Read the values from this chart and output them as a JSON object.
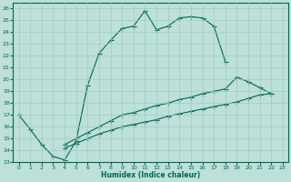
{
  "title": "",
  "xlabel": "Humidex (Indice chaleur)",
  "xlim": [
    -0.5,
    23.5
  ],
  "ylim": [
    13,
    26.5
  ],
  "yticks": [
    13,
    14,
    15,
    16,
    17,
    18,
    19,
    20,
    21,
    22,
    23,
    24,
    25,
    26
  ],
  "xticks": [
    0,
    1,
    2,
    3,
    4,
    5,
    6,
    7,
    8,
    9,
    10,
    11,
    12,
    13,
    14,
    15,
    16,
    17,
    18,
    19,
    20,
    21,
    22,
    23
  ],
  "bg_color": "#bde0d8",
  "grid_color": "#9dccc4",
  "line_color": "#006655",
  "curve1_y": [
    17.0,
    15.8,
    14.5,
    13.5,
    13.2,
    14.8,
    19.5,
    22.2,
    23.3,
    24.3,
    24.5,
    25.8,
    24.2,
    24.5,
    25.2,
    25.3,
    25.2,
    24.5,
    21.5,
    null,
    null,
    null,
    null,
    null
  ],
  "curve2_y": [
    null,
    null,
    null,
    null,
    14.5,
    15.0,
    15.5,
    16.0,
    16.5,
    17.0,
    17.2,
    17.5,
    17.8,
    18.0,
    18.3,
    18.5,
    18.8,
    19.0,
    19.2,
    20.2,
    19.8,
    19.3,
    18.8,
    null
  ],
  "curve3_y": [
    null,
    null,
    null,
    null,
    14.2,
    14.6,
    15.0,
    15.4,
    15.7,
    16.0,
    16.2,
    16.4,
    16.6,
    16.9,
    17.1,
    17.3,
    17.5,
    17.7,
    17.9,
    18.1,
    18.4,
    18.7,
    18.8,
    null
  ]
}
